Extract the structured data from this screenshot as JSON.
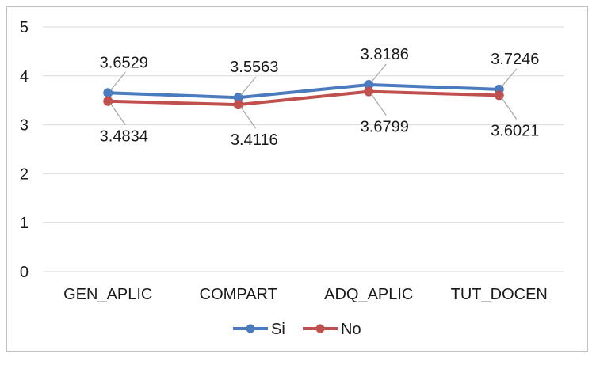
{
  "chart_data": {
    "type": "line",
    "title": "",
    "xlabel": "",
    "ylabel": "",
    "ylim": [
      0,
      5
    ],
    "yticks": [
      "0",
      "1",
      "2",
      "3",
      "4",
      "5"
    ],
    "grid": true,
    "legend_position": "bottom",
    "categories": [
      "GEN_APLIC",
      "COMPART",
      "ADQ_APLIC",
      "TUT_DOCEN"
    ],
    "series": [
      {
        "name": "Si",
        "color": "#4a7bbf",
        "values": [
          3.6529,
          3.5563,
          3.8186,
          3.7246
        ],
        "labels": [
          "3.6529",
          "3.5563",
          "3.8186",
          "3.7246"
        ]
      },
      {
        "name": "No",
        "color": "#c0504d",
        "values": [
          3.4834,
          3.4116,
          3.6799,
          3.6021
        ],
        "labels": [
          "3.4834",
          "3.4116",
          "3.6799",
          "3.6021"
        ]
      }
    ]
  }
}
